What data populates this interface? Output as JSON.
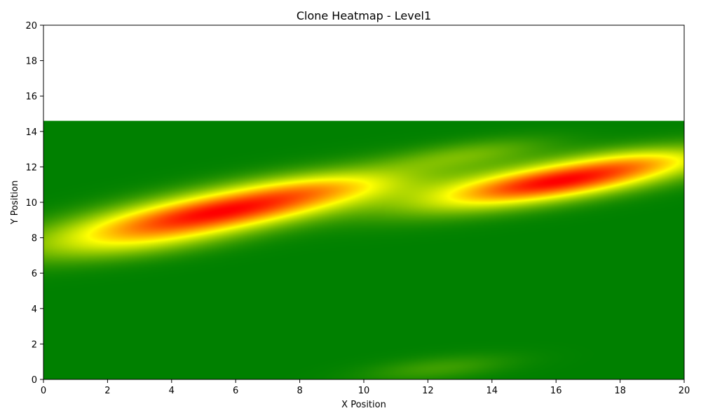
{
  "chart_data": {
    "type": "heatmap",
    "title": "Clone Heatmap - Level1",
    "xlabel": "X Position",
    "ylabel": "Y Position",
    "xlim": [
      0,
      20
    ],
    "ylim": [
      0,
      20
    ],
    "xticks": [
      0,
      2,
      4,
      6,
      8,
      10,
      12,
      14,
      16,
      18,
      20
    ],
    "yticks": [
      0,
      2,
      4,
      6,
      8,
      10,
      12,
      14,
      16,
      18,
      20
    ],
    "data_extent": {
      "x": [
        0,
        20
      ],
      "y": [
        0,
        14.6
      ]
    },
    "colormap": [
      "#008000",
      "#ffff00",
      "#ff0000"
    ],
    "grid": false,
    "legend": "none",
    "hotspots": [
      {
        "x": 5.6,
        "y": 9.5,
        "sigma_x": 3.6,
        "sigma_y": 0.8,
        "angle_deg": 18,
        "intensity": 1.0
      },
      {
        "x": 16.1,
        "y": 11.2,
        "sigma_x": 2.9,
        "sigma_y": 0.7,
        "angle_deg": 16,
        "intensity": 1.0
      },
      {
        "x": 13.3,
        "y": 12.7,
        "sigma_x": 1.8,
        "sigma_y": 0.5,
        "angle_deg": 14,
        "intensity": 0.18
      },
      {
        "x": 12.3,
        "y": 0.6,
        "sigma_x": 1.6,
        "sigma_y": 0.45,
        "angle_deg": 10,
        "intensity": 0.12
      },
      {
        "x": 8.8,
        "y": 10.9,
        "sigma_x": 1.6,
        "sigma_y": 0.5,
        "angle_deg": 5,
        "intensity": 0.1
      },
      {
        "x": 18.8,
        "y": 12.4,
        "sigma_x": 1.5,
        "sigma_y": 0.5,
        "angle_deg": 5,
        "intensity": 0.12
      },
      {
        "x": 3.2,
        "y": 7.6,
        "sigma_x": 2.0,
        "sigma_y": 0.6,
        "angle_deg": 12,
        "intensity": 0.12
      }
    ]
  }
}
